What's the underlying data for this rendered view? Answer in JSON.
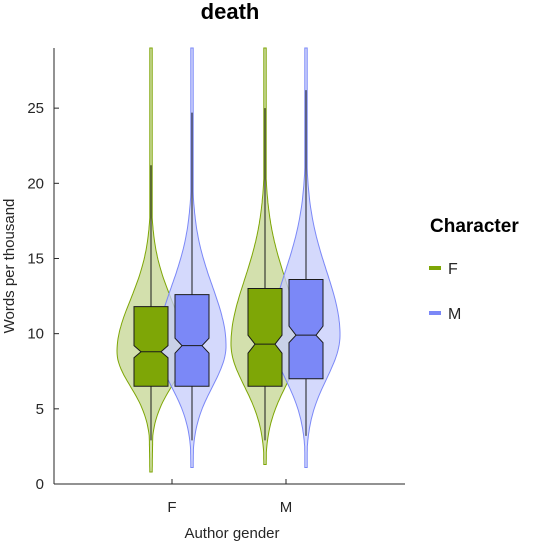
{
  "chart_data": {
    "type": "violin",
    "title": "death",
    "xlabel": "Author gender",
    "ylabel": "Words per thousand",
    "categories": [
      "F",
      "M"
    ],
    "ylim": [
      0,
      29
    ],
    "yticks": [
      0,
      5,
      10,
      15,
      20,
      25
    ],
    "legend": {
      "title": "Character",
      "position": "right",
      "entries": [
        {
          "label": "F",
          "color": "#7ea606"
        },
        {
          "label": "M",
          "color": "#7b88f7"
        }
      ]
    },
    "series": [
      {
        "name": "F",
        "color": "#7ea606",
        "fill": "#c4d591",
        "box_fill": "#7ea606",
        "groups": [
          {
            "category": "F",
            "min": 0.8,
            "max": 29,
            "whisker_low": 2.9,
            "whisker_high": 21.2,
            "q1": 6.5,
            "median": 8.8,
            "q3": 11.8,
            "notch": [
              8.4,
              9.2
            ]
          },
          {
            "category": "M",
            "min": 1.3,
            "max": 29,
            "whisker_low": 2.9,
            "whisker_high": 25.0,
            "q1": 6.5,
            "median": 9.3,
            "q3": 13.0,
            "notch": [
              8.7,
              9.9
            ]
          }
        ]
      },
      {
        "name": "M",
        "color": "#7b88f7",
        "fill": "#c5ccfb",
        "box_fill": "#7b88f7",
        "groups": [
          {
            "category": "F",
            "min": 1.1,
            "max": 29,
            "whisker_low": 2.9,
            "whisker_high": 24.7,
            "q1": 6.5,
            "median": 9.2,
            "q3": 12.6,
            "notch": [
              8.7,
              9.7
            ]
          },
          {
            "category": "M",
            "min": 1.1,
            "max": 29,
            "whisker_low": 3.2,
            "whisker_high": 26.2,
            "q1": 7.0,
            "median": 9.9,
            "q3": 13.6,
            "notch": [
              9.4,
              10.5
            ]
          }
        ]
      }
    ]
  }
}
